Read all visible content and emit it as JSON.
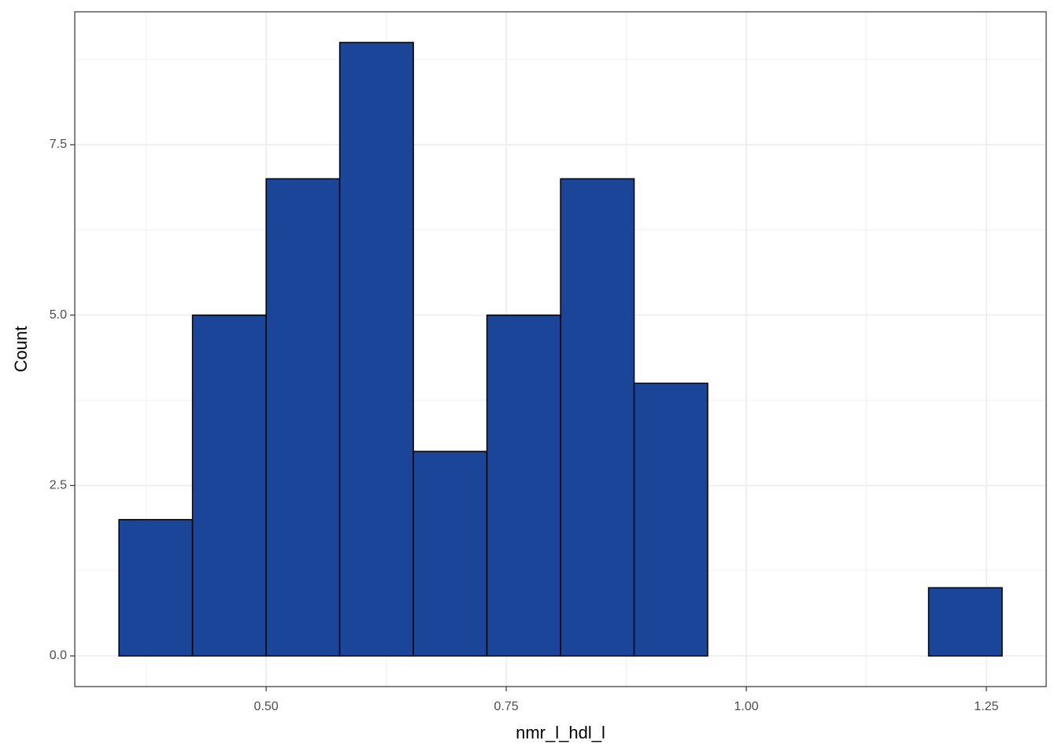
{
  "chart_data": {
    "type": "histogram",
    "x_label": "nmr_l_hdl_l",
    "y_label": "Count",
    "bins": [
      0.3467,
      0.4233,
      0.5,
      0.5766,
      0.6533,
      0.7299,
      0.8066,
      0.8832,
      0.9598,
      1.0365,
      1.1131,
      1.1898,
      1.2664
    ],
    "values": [
      2,
      5,
      7,
      9,
      3,
      5,
      7,
      4,
      0,
      0,
      0,
      1
    ],
    "color": "#1a4599",
    "edge_color": "#000000",
    "xlim": [
      0.3007,
      1.3123
    ],
    "ylim": [
      -0.45,
      9.45
    ],
    "xticks": [
      {
        "value": 0.5,
        "label": "0.50"
      },
      {
        "value": 0.75,
        "label": "0.75"
      },
      {
        "value": 1.0,
        "label": "1.00"
      },
      {
        "value": 1.25,
        "label": "1.25"
      }
    ],
    "yticks": [
      {
        "value": 0,
        "label": "0.0"
      },
      {
        "value": 2.5,
        "label": "2.5"
      },
      {
        "value": 5,
        "label": "5.0"
      },
      {
        "value": 7.5,
        "label": "7.5"
      }
    ],
    "x_minor_grid": [
      0.375,
      0.625,
      0.875,
      1.125
    ],
    "y_minor_grid": [
      1.25,
      3.75,
      6.25,
      8.75
    ],
    "grid": true
  }
}
